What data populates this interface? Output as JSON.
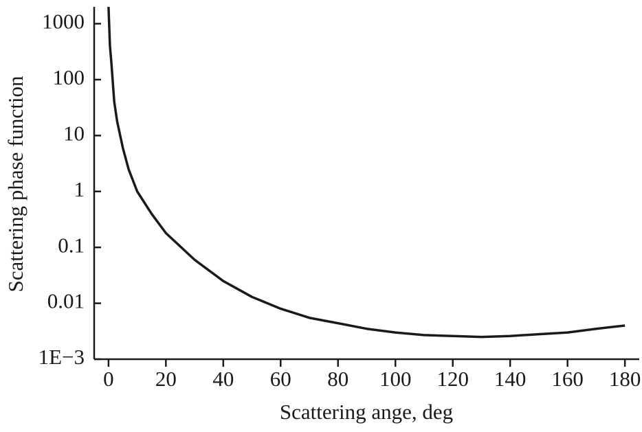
{
  "chart_data": {
    "type": "line",
    "y_scale": "log",
    "xlabel": "Scattering ange, deg",
    "ylabel": "Scattering phase function",
    "x": [
      0,
      0.5,
      1,
      2,
      3,
      5,
      7,
      10,
      15,
      20,
      30,
      40,
      50,
      60,
      70,
      80,
      90,
      100,
      110,
      120,
      130,
      140,
      150,
      160,
      170,
      180
    ],
    "series": [
      {
        "color": "#1a1a1a",
        "values": [
          2000,
          400,
          200,
          40,
          18,
          6,
          2.5,
          1,
          0.4,
          0.18,
          0.06,
          0.025,
          0.013,
          0.008,
          0.0055,
          0.0044,
          0.0035,
          0.003,
          0.0027,
          0.0026,
          0.0025,
          0.0026,
          0.0028,
          0.003,
          0.0035,
          0.004
        ]
      }
    ],
    "xlim": [
      -5,
      185
    ],
    "xticks": [
      0,
      20,
      40,
      60,
      80,
      100,
      120,
      140,
      160,
      180
    ],
    "ylim": [
      0.001,
      2000
    ],
    "yticks": [
      {
        "value": 0.001,
        "label": "1E−3"
      },
      0.01,
      0.1,
      1,
      10,
      100,
      1000
    ]
  }
}
